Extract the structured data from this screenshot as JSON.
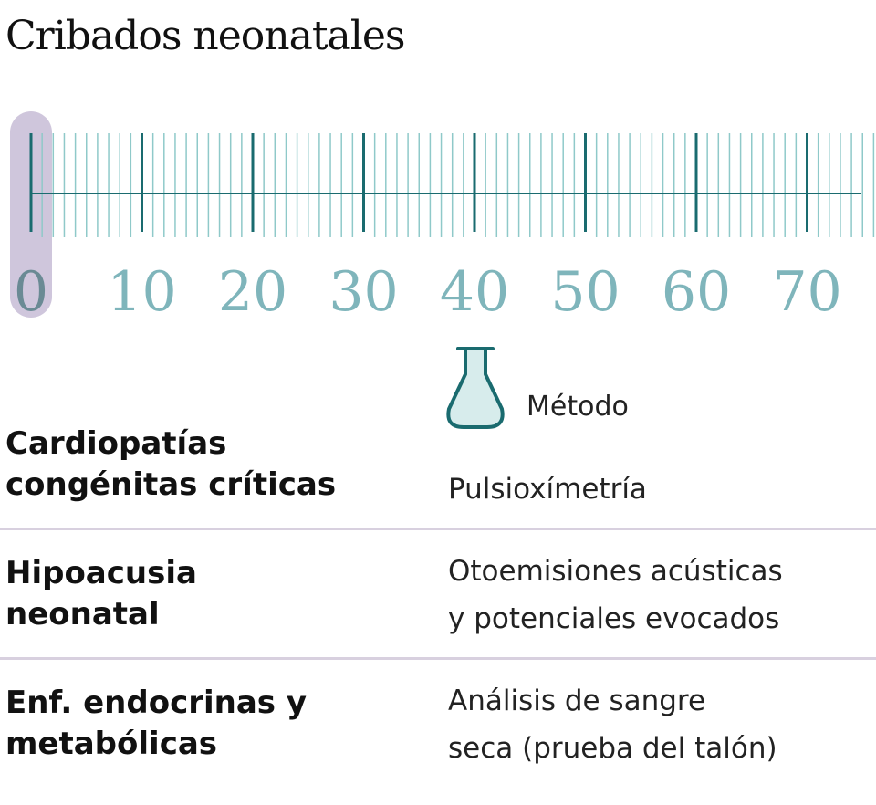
{
  "title": "Cribados neonatales",
  "scale": {
    "min": 0,
    "max": 76,
    "major_step": 10,
    "highlight_value": 0,
    "tick_labels": [
      "0",
      "10",
      "20",
      "30",
      "40",
      "50",
      "60",
      "70"
    ],
    "colors": {
      "ticks": "#1a6b6f",
      "minor_ticks": "#8fc9c9",
      "labels": "#7fb5bb",
      "highlight_band": "#cfc6dc",
      "highlight_label": "#6a8a94"
    }
  },
  "method_header": {
    "icon": "flask-icon",
    "label": "Método"
  },
  "rows": [
    {
      "condition": [
        "Cardiopatías",
        "congénitas críticas"
      ],
      "method": [
        "Pulsioxímetría"
      ]
    },
    {
      "condition": [
        "Hipoacusia",
        "neonatal"
      ],
      "method": [
        "Otoemisiones acústicas",
        "y potenciales evocados"
      ]
    },
    {
      "condition": [
        "Enf. endocrinas y",
        "metabólicas"
      ],
      "method": [
        "Análisis de sangre",
        "seca (prueba del talón)"
      ]
    }
  ]
}
